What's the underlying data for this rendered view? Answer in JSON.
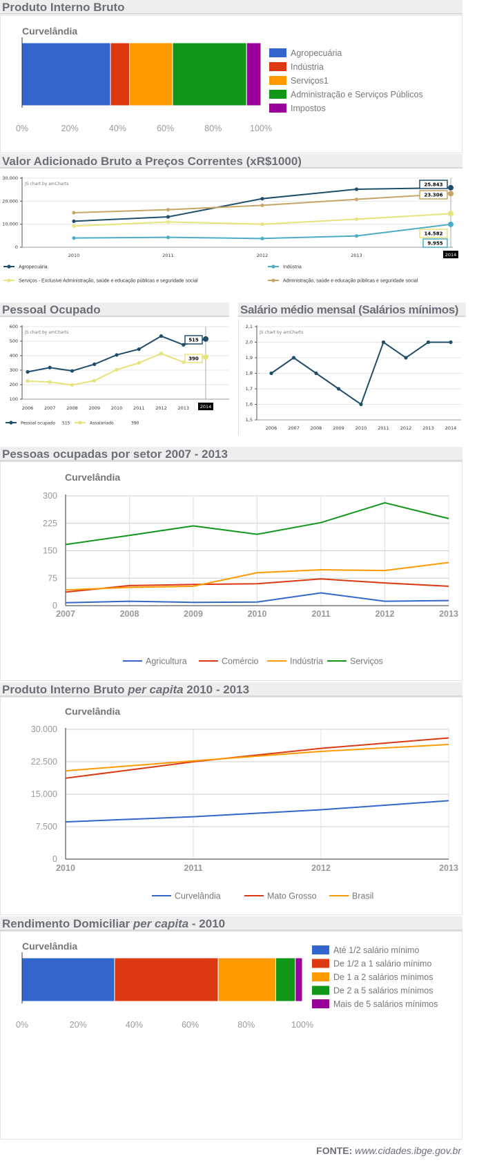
{
  "headers": {
    "pib": "Produto Interno Bruto",
    "vab": "Valor Adicionado Bruto a Preços Correntes (xR$1000)",
    "pessoal": "Pessoal Ocupado",
    "salario": "Salário médio mensal (Salários mínimos)",
    "setor": "Pessoas ocupadas por setor 2007 - 2013",
    "pibpc_a": "Produto Interno Bruto ",
    "pibpc_b": "per capita",
    "pibpc_c": " 2010 - 2013",
    "rend_a": "Rendimento Domiciliar ",
    "rend_b": "per capita",
    "rend_c": " - 2010"
  },
  "footer": {
    "label": "FONTE:",
    "source": "www.cidades.ibge.gov.br"
  },
  "chart_data": [
    {
      "id": "pib",
      "type": "bar",
      "stacked": "percent",
      "orientation": "horizontal",
      "title": "Curvelândia",
      "legend": "right",
      "xticks": [
        "0%",
        "20%",
        "40%",
        "60%",
        "80%",
        "100%"
      ],
      "series": [
        {
          "name": "Agropecuária",
          "value": 37,
          "color": "#3366cc"
        },
        {
          "name": "Indústria",
          "value": 8,
          "color": "#dc3912"
        },
        {
          "name": "Serviços1",
          "value": 18,
          "color": "#ff9900"
        },
        {
          "name": "Administração e Serviços Públicos",
          "value": 31,
          "color": "#109618"
        },
        {
          "name": "Impostos",
          "value": 6,
          "color": "#990099"
        }
      ]
    },
    {
      "id": "vab",
      "type": "line",
      "watermark": "JS chart by amCharts",
      "x": [
        "2010",
        "2011",
        "2012",
        "2013",
        "2014"
      ],
      "ylim": [
        0,
        30000
      ],
      "yticks": [
        "0",
        "10.000",
        "20.000",
        "30.000"
      ],
      "ytick_values": [
        0,
        10000,
        20000,
        30000
      ],
      "cursor_label": "2014",
      "legend": "bottom",
      "grid": true,
      "series": [
        {
          "name": "Agropecuária",
          "color": "#1f4e6b",
          "values": [
            11300,
            13200,
            21100,
            25200,
            25843
          ],
          "last_label": "25.843"
        },
        {
          "name": "Indústria",
          "color": "#4bacc6",
          "values": [
            4000,
            4300,
            3800,
            4900,
            9955
          ],
          "last_label": "9.955"
        },
        {
          "name": "Serviços - Exclusive Administração, saúde e educação públicas e seguridade social",
          "color": "#e8e27a",
          "values": [
            9200,
            11000,
            10000,
            12200,
            14582
          ],
          "last_label": "14.582"
        },
        {
          "name": "Administração, saúde e educação públicas e seguridade social",
          "color": "#c8a464",
          "values": [
            15000,
            16300,
            18200,
            20800,
            23306
          ],
          "last_label": "23.306"
        }
      ]
    },
    {
      "id": "pessoal",
      "type": "line",
      "watermark": "JS chart by amCharts",
      "x": [
        "2006",
        "2007",
        "2008",
        "2009",
        "2010",
        "2011",
        "2012",
        "2013",
        "2014"
      ],
      "ylim": [
        100,
        600
      ],
      "yticks": [
        "100",
        "200",
        "300",
        "400",
        "500",
        "600"
      ],
      "ytick_values": [
        100,
        200,
        300,
        400,
        500,
        600
      ],
      "cursor_label": "2014",
      "legend": "bottom",
      "grid": true,
      "series": [
        {
          "name": "Pessoal ocupado",
          "color": "#1f4e6b",
          "values": [
            288,
            318,
            295,
            341,
            405,
            445,
            535,
            475,
            515
          ],
          "last_label": "515"
        },
        {
          "name": "Assalariado",
          "color": "#e8e27a",
          "values": [
            225,
            218,
            198,
            228,
            303,
            350,
            415,
            355,
            390
          ],
          "last_label": "390"
        }
      ]
    },
    {
      "id": "salario",
      "type": "line",
      "watermark": "JS chart by amCharts",
      "x": [
        "2006",
        "2007",
        "2008",
        "2009",
        "2010",
        "2011",
        "2012",
        "2013",
        "2014"
      ],
      "ylim": [
        1.5,
        2.1
      ],
      "yticks": [
        "1,5",
        "1,6",
        "1,7",
        "1,8",
        "1,9",
        "2,0",
        "2,1"
      ],
      "ytick_values": [
        1.5,
        1.6,
        1.7,
        1.8,
        1.9,
        2.0,
        2.1
      ],
      "grid": true,
      "series": [
        {
          "color": "#1f4e6b",
          "values": [
            1.8,
            1.9,
            1.8,
            1.7,
            1.6,
            2.0,
            1.9,
            2.0,
            2.0
          ]
        }
      ]
    },
    {
      "id": "setor",
      "type": "line",
      "title": "Curvelândia",
      "x": [
        "2007",
        "2008",
        "2009",
        "2010",
        "2011",
        "2012",
        "2013"
      ],
      "ylim": [
        0,
        300
      ],
      "yticks": [
        "0",
        "75",
        "150",
        "225",
        "300"
      ],
      "ytick_values": [
        0,
        75,
        150,
        225,
        300
      ],
      "legend": "bottom",
      "grid": true,
      "series": [
        {
          "name": "Agricultura",
          "color": "#3366cc",
          "values": [
            8,
            12,
            9,
            10,
            35,
            12,
            14
          ]
        },
        {
          "name": "Comércio",
          "color": "#dc3912",
          "values": [
            37,
            55,
            58,
            60,
            73,
            62,
            53
          ]
        },
        {
          "name": "Indústria",
          "color": "#ff9900",
          "values": [
            43,
            50,
            53,
            90,
            98,
            96,
            118
          ]
        },
        {
          "name": "Serviços",
          "color": "#109618",
          "values": [
            167,
            192,
            218,
            195,
            227,
            281,
            238
          ]
        }
      ]
    },
    {
      "id": "pibpc",
      "type": "line",
      "title": "Curvelândia",
      "x": [
        "2010",
        "2011",
        "2012",
        "2013"
      ],
      "ylim": [
        0,
        30000
      ],
      "yticks": [
        "0",
        "7.500",
        "15.000",
        "22.500",
        "30.000"
      ],
      "ytick_values": [
        0,
        7500,
        15000,
        22500,
        30000
      ],
      "legend": "bottom",
      "grid": true,
      "series": [
        {
          "name": "Curvelândia",
          "color": "#3366cc",
          "values": [
            8600,
            9800,
            11400,
            13500
          ]
        },
        {
          "name": "Mato Grosso",
          "color": "#dc3912",
          "values": [
            18700,
            22500,
            25600,
            28000
          ]
        },
        {
          "name": "Brasil",
          "color": "#ff9900",
          "values": [
            20400,
            22700,
            24900,
            26500
          ]
        }
      ]
    },
    {
      "id": "rend",
      "type": "bar",
      "stacked": "percent",
      "orientation": "horizontal",
      "title": "Curvelândia",
      "legend": "right",
      "xticks": [
        "0%",
        "20%",
        "40%",
        "60%",
        "80%",
        "100%"
      ],
      "series": [
        {
          "name": "Até 1/2 salário mínimo",
          "value": 33,
          "color": "#3366cc"
        },
        {
          "name": "De 1/2 a 1 salário mínimo",
          "value": 37,
          "color": "#dc3912"
        },
        {
          "name": "De 1 a 2 salários mínimos",
          "value": 20.5,
          "color": "#ff9900"
        },
        {
          "name": "De 2 a 5 salários mínimos",
          "value": 7,
          "color": "#109618"
        },
        {
          "name": "Mais de 5 salários mínimos",
          "value": 2.5,
          "color": "#990099"
        }
      ]
    }
  ]
}
